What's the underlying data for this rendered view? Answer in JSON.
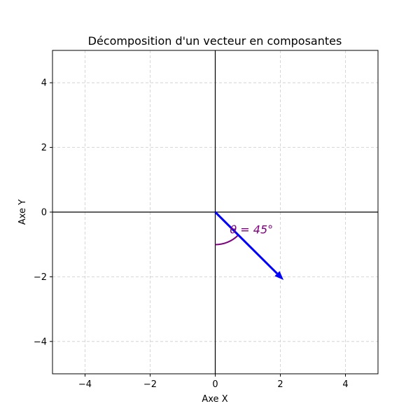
{
  "chart_data": {
    "type": "line",
    "title": "Décomposition d'un vecteur en composantes",
    "xlabel": "Axe X",
    "ylabel": "Axe Y",
    "xlim": [
      -5,
      5
    ],
    "ylim": [
      -5,
      5
    ],
    "grid": true,
    "x_ticks": [
      -4,
      -2,
      0,
      2,
      4
    ],
    "y_ticks": [
      -4,
      -2,
      0,
      2,
      4
    ],
    "x_tick_labels": [
      "−4",
      "−2",
      "0",
      "2",
      "4"
    ],
    "y_tick_labels": [
      "−4",
      "−2",
      "0",
      "2",
      "4"
    ],
    "vector": {
      "x0": 0,
      "y0": 0,
      "x1": 2.1,
      "y1": -2.1,
      "color": "#0000ff"
    },
    "angle_arc": {
      "center": [
        0,
        0
      ],
      "radius": 1.0,
      "start_deg": -90,
      "end_deg": -45,
      "color": "#800080"
    },
    "annotation": {
      "text": "θ = 45°",
      "x": 0.45,
      "y": -0.55,
      "color": "#800080"
    },
    "colors": {
      "grid": "#cccccc",
      "axes": "#000000"
    }
  }
}
